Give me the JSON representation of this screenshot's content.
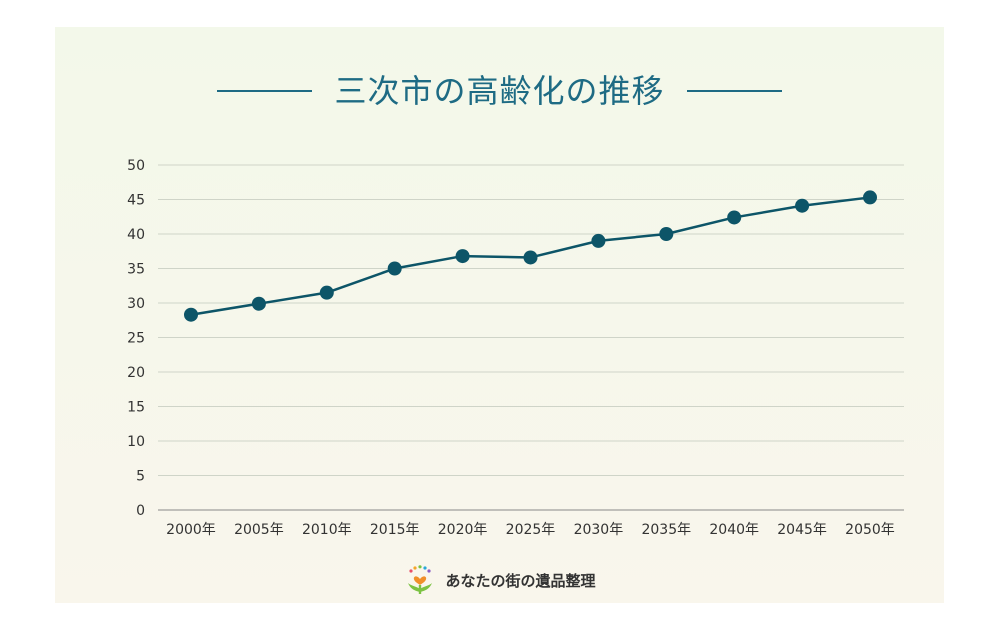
{
  "chart_data": {
    "type": "line",
    "title": "三次市の高齢化の推移",
    "categories": [
      "2000年",
      "2005年",
      "2010年",
      "2015年",
      "2020年",
      "2025年",
      "2030年",
      "2035年",
      "2040年",
      "2045年",
      "2050年"
    ],
    "series": [
      {
        "values": [
          28.3,
          29.9,
          31.5,
          35.0,
          36.8,
          36.6,
          39.0,
          40.0,
          42.4,
          44.1,
          45.3
        ]
      }
    ],
    "ylim": [
      0,
      50
    ],
    "yticks": [
      "0",
      "5",
      "10",
      "15",
      "20",
      "25",
      "30",
      "35",
      "40",
      "45",
      "50"
    ],
    "grid": true,
    "legend": "none"
  },
  "colors": {
    "line": "#0d5568",
    "title": "#1e6b84",
    "grid": "#cfd4c8",
    "axis": "#666666"
  },
  "footer": {
    "brand": "あなたの街の遺品整理",
    "logo_icon": "heart-sprout-icon"
  }
}
